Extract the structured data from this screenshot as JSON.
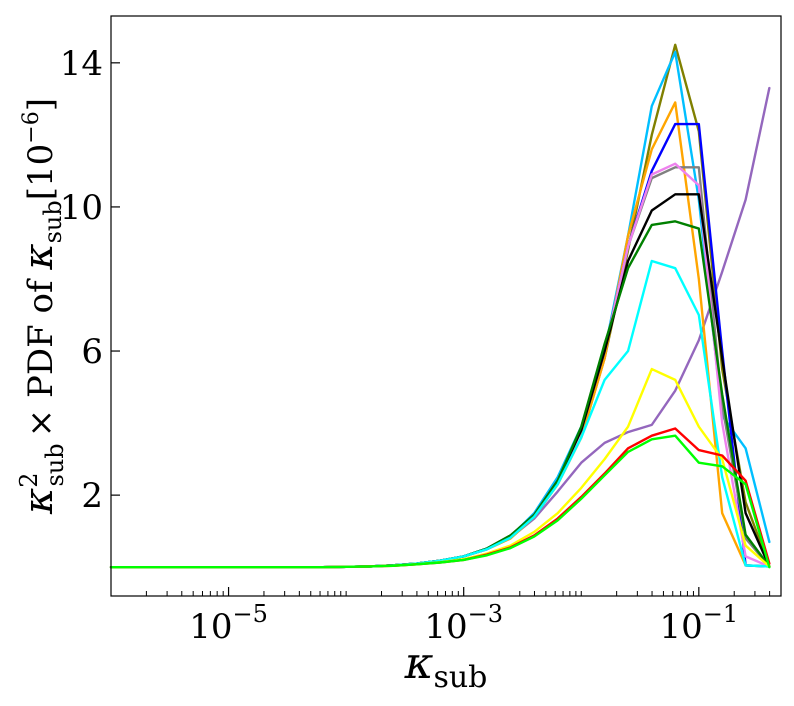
{
  "chart_data": {
    "type": "line",
    "title": "",
    "xscale": "log",
    "xlim": [
      1e-06,
      0.5
    ],
    "ylim": [
      -0.8,
      15.3
    ],
    "x_ticks": [
      {
        "value": 1e-05,
        "base": "10",
        "exp": "−5"
      },
      {
        "value": 0.001,
        "base": "10",
        "exp": "−3"
      },
      {
        "value": 0.1,
        "base": "10",
        "exp": "−1"
      }
    ],
    "y_ticks": [
      {
        "value": 2,
        "label": "2"
      },
      {
        "value": 6,
        "label": "6"
      },
      {
        "value": 10,
        "label": "10"
      },
      {
        "value": 14,
        "label": "14"
      }
    ],
    "xlabel": {
      "symbol": "κ",
      "sub": "sub"
    },
    "ylabel": {
      "symbol": "κ",
      "sup": "2",
      "sub": "sub",
      "middle": "× PDF of ",
      "symbol2": "κ",
      "sub2": "sub",
      "unit_open": "[10",
      "unit_exp": "−6",
      "unit_close": "]"
    },
    "x": [
      1e-06,
      1.58e-06,
      2.5e-06,
      3.98e-06,
      6.3e-06,
      1e-05,
      1.58e-05,
      2.5e-05,
      3.98e-05,
      6.3e-05,
      0.0001,
      0.000158,
      0.00025,
      0.000398,
      0.00063,
      0.001,
      0.00158,
      0.0025,
      0.00398,
      0.0063,
      0.01,
      0.0158,
      0.025,
      0.0398,
      0.063,
      0.1,
      0.158,
      0.25,
      0.398
    ],
    "series": [
      {
        "name": "purple",
        "color": "#9467bd",
        "width": 2.2,
        "values": [
          0,
          0,
          0,
          0,
          0,
          0,
          0,
          0,
          0,
          0,
          0.01,
          0.02,
          0.05,
          0.1,
          0.18,
          0.3,
          0.5,
          0.82,
          1.35,
          2.1,
          2.9,
          3.45,
          3.75,
          3.95,
          4.9,
          6.3,
          8.2,
          10.2,
          13.3
        ]
      },
      {
        "name": "olive",
        "color": "#808000",
        "width": 2.4,
        "values": [
          0,
          0,
          0,
          0,
          0,
          0,
          0,
          0,
          0,
          0,
          0.01,
          0.02,
          0.05,
          0.1,
          0.18,
          0.3,
          0.5,
          0.8,
          1.4,
          2.3,
          3.6,
          5.8,
          8.8,
          12.0,
          14.5,
          12.1,
          5.5,
          1.8,
          0.02
        ]
      },
      {
        "name": "deepskyblue",
        "color": "#00bfff",
        "width": 2.4,
        "values": [
          0,
          0,
          0,
          0,
          0,
          0,
          0,
          0,
          0,
          0,
          0.01,
          0.02,
          0.05,
          0.1,
          0.18,
          0.3,
          0.52,
          0.85,
          1.5,
          2.5,
          3.9,
          6.0,
          9.2,
          12.8,
          14.3,
          10.2,
          4.2,
          3.3,
          0.7
        ]
      },
      {
        "name": "orange",
        "color": "#ffa500",
        "width": 2.4,
        "values": [
          0,
          0,
          0,
          0,
          0,
          0,
          0,
          0,
          0,
          0,
          0.01,
          0.02,
          0.05,
          0.1,
          0.18,
          0.3,
          0.5,
          0.8,
          1.4,
          2.3,
          3.6,
          5.8,
          9.2,
          11.6,
          12.9,
          8.0,
          1.5,
          0.05,
          0.02
        ]
      },
      {
        "name": "blue",
        "color": "#0000ff",
        "width": 2.4,
        "values": [
          0,
          0,
          0,
          0,
          0,
          0,
          0,
          0,
          0,
          0,
          0.01,
          0.02,
          0.05,
          0.1,
          0.18,
          0.3,
          0.5,
          0.85,
          1.45,
          2.4,
          3.8,
          6.0,
          8.9,
          11.0,
          12.3,
          12.3,
          6.0,
          0.05,
          0.02
        ]
      },
      {
        "name": "gray",
        "color": "#808080",
        "width": 2.4,
        "values": [
          0,
          0,
          0,
          0,
          0,
          0,
          0,
          0,
          0,
          0,
          0.01,
          0.02,
          0.05,
          0.1,
          0.18,
          0.3,
          0.5,
          0.85,
          1.45,
          2.4,
          3.8,
          6.0,
          8.9,
          10.8,
          11.1,
          11.1,
          4.5,
          0.8,
          0.02
        ]
      },
      {
        "name": "violet",
        "color": "#ee82ee",
        "width": 2.4,
        "values": [
          0,
          0,
          0,
          0,
          0,
          0,
          0,
          0,
          0,
          0,
          0.01,
          0.02,
          0.05,
          0.1,
          0.18,
          0.3,
          0.5,
          0.85,
          1.45,
          2.4,
          3.8,
          6.0,
          8.9,
          10.9,
          11.2,
          10.6,
          4.0,
          0.3,
          0.02
        ]
      },
      {
        "name": "black",
        "color": "#000000",
        "width": 3.0,
        "values": [
          0,
          0,
          0,
          0,
          0,
          0,
          0,
          0,
          0,
          0,
          0.01,
          0.02,
          0.05,
          0.1,
          0.18,
          0.3,
          0.52,
          0.88,
          1.45,
          2.4,
          3.8,
          6.0,
          8.5,
          9.9,
          10.35,
          10.35,
          5.8,
          1.5,
          0.02
        ]
      },
      {
        "name": "green",
        "color": "#008000",
        "width": 2.4,
        "values": [
          0,
          0,
          0,
          0,
          0,
          0,
          0,
          0,
          0,
          0,
          0.01,
          0.02,
          0.05,
          0.1,
          0.18,
          0.3,
          0.52,
          0.88,
          1.45,
          2.4,
          3.9,
          6.2,
          8.3,
          9.5,
          9.6,
          9.4,
          4.8,
          0.9,
          0.02
        ]
      },
      {
        "name": "cyan",
        "color": "#00ffff",
        "width": 2.4,
        "values": [
          0,
          0,
          0,
          0,
          0,
          0,
          0,
          0,
          0,
          0,
          0.01,
          0.02,
          0.05,
          0.1,
          0.18,
          0.3,
          0.5,
          0.82,
          1.4,
          2.3,
          3.6,
          5.2,
          6.0,
          8.5,
          8.3,
          7.0,
          2.5,
          0.05,
          0.02
        ]
      },
      {
        "name": "yellow",
        "color": "#ffff00",
        "width": 2.4,
        "values": [
          0,
          0,
          0,
          0,
          0,
          0,
          0,
          0,
          0,
          0,
          0.01,
          0.02,
          0.04,
          0.08,
          0.14,
          0.22,
          0.38,
          0.6,
          0.98,
          1.5,
          2.2,
          3.0,
          3.9,
          5.5,
          5.2,
          3.9,
          3.0,
          0.6,
          0.02
        ]
      },
      {
        "name": "red",
        "color": "#ff0000",
        "width": 3.0,
        "values": [
          0,
          0,
          0,
          0,
          0,
          0,
          0,
          0,
          0,
          0,
          0.01,
          0.02,
          0.04,
          0.08,
          0.13,
          0.2,
          0.35,
          0.55,
          0.88,
          1.35,
          1.95,
          2.6,
          3.3,
          3.65,
          3.85,
          3.25,
          3.1,
          2.4,
          0.1
        ]
      },
      {
        "name": "lime",
        "color": "#00ff00",
        "width": 2.4,
        "values": [
          0,
          0,
          0,
          0,
          0,
          0,
          0,
          0,
          0,
          0,
          0.01,
          0.02,
          0.04,
          0.08,
          0.13,
          0.2,
          0.33,
          0.53,
          0.85,
          1.3,
          1.9,
          2.55,
          3.2,
          3.55,
          3.65,
          2.9,
          2.8,
          2.3,
          0.0
        ]
      }
    ]
  }
}
